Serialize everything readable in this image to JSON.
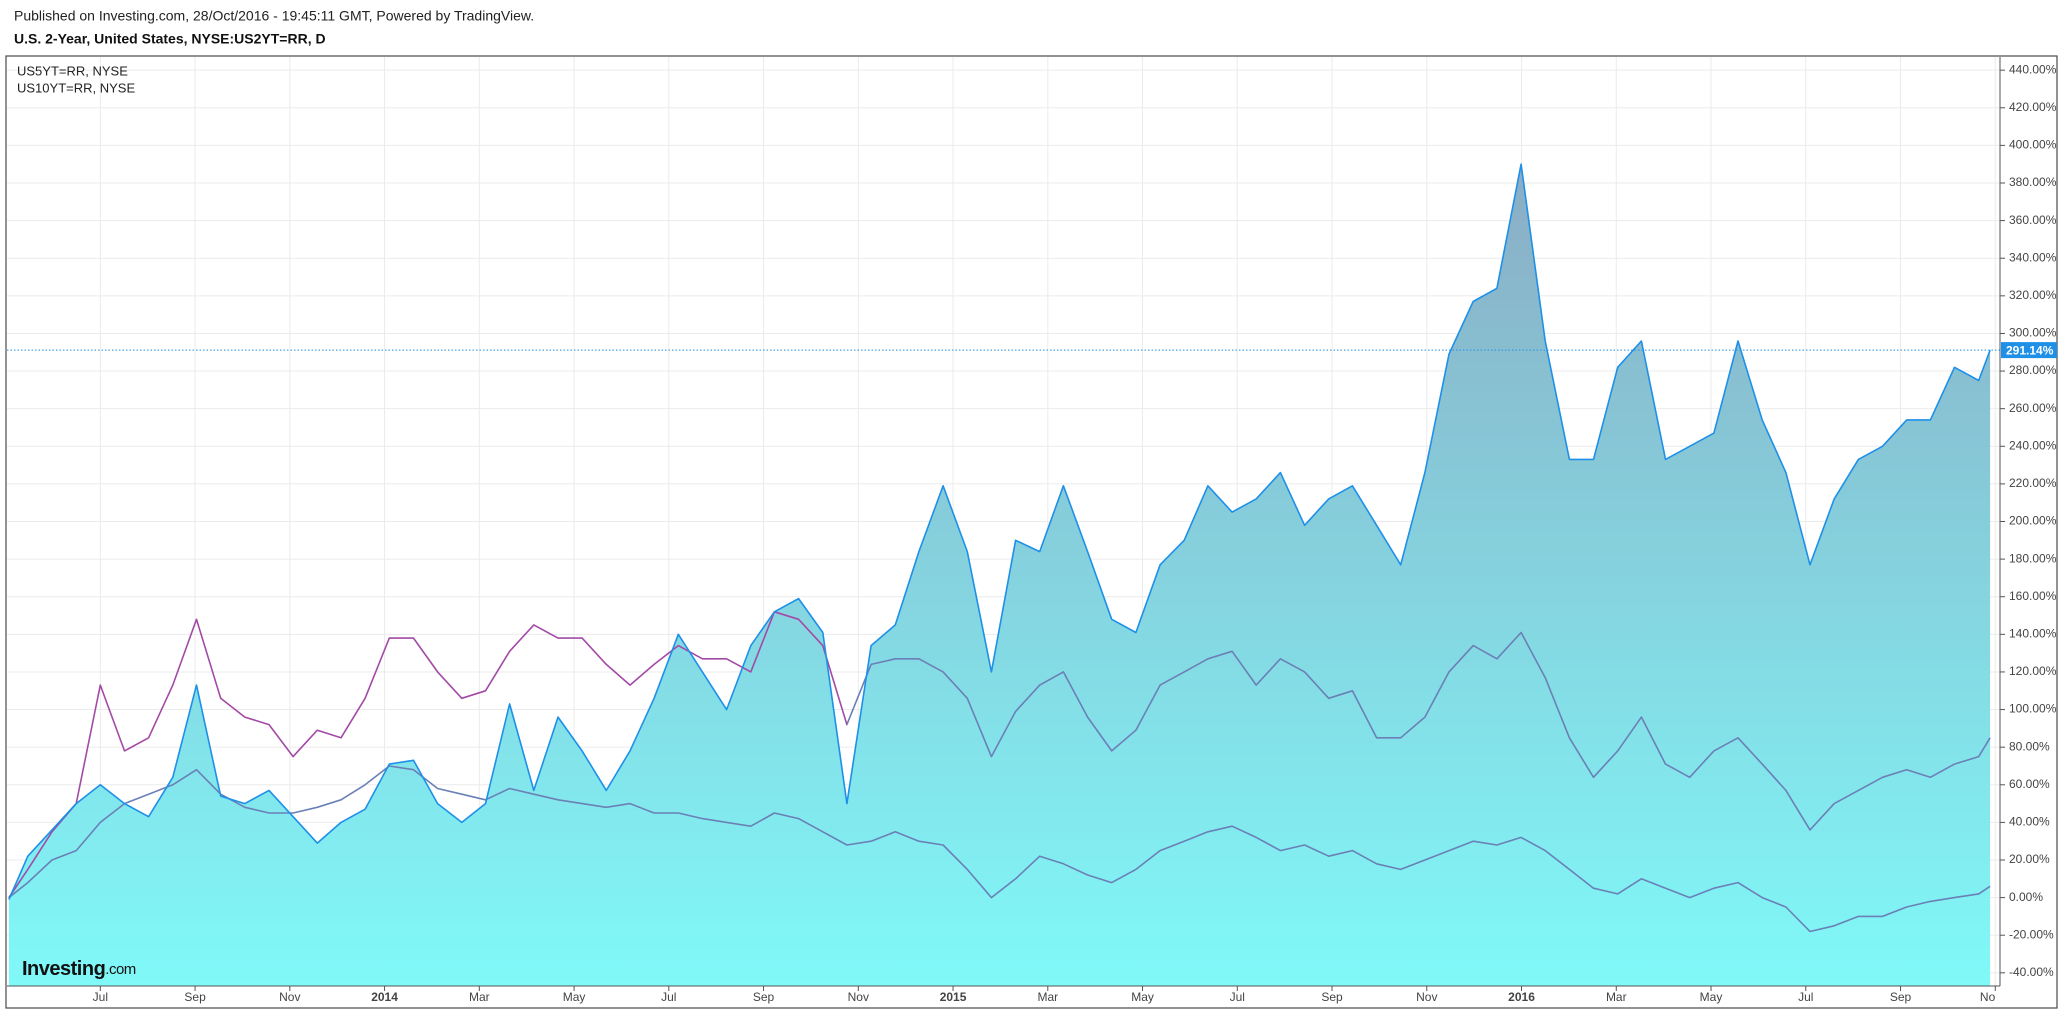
{
  "header": {
    "published": "Published on Investing.com, 28/Oct/2016 - 19:45:11 GMT, Powered by TradingView."
  },
  "logo": {
    "main": "Investing",
    "suffix": ".com"
  },
  "chart_data": {
    "type": "line",
    "x": [
      -1.93,
      -1.53,
      -1.02,
      -0.51,
      0,
      0.51,
      1.02,
      1.53,
      2.03,
      2.54,
      3.05,
      3.56,
      4.07,
      4.58,
      5.08,
      5.59,
      6.1,
      6.61,
      7.12,
      7.63,
      8.13,
      8.64,
      9.15,
      9.66,
      10.17,
      10.68,
      11.18,
      11.69,
      12.2,
      12.71,
      13.22,
      13.73,
      14.23,
      14.74,
      15.25,
      15.76,
      16.27,
      16.78,
      17.28,
      17.79,
      18.3,
      18.81,
      19.32,
      19.83,
      20.33,
      20.84,
      21.35,
      21.86,
      22.37,
      22.88,
      23.38,
      23.89,
      24.4,
      24.91,
      25.42,
      25.93,
      26.43,
      26.94,
      27.45,
      27.96,
      28.47,
      28.98,
      29.48,
      29.99,
      30.5,
      31.01,
      31.52,
      32.03,
      32.53,
      33.04,
      33.55,
      34.06,
      34.57,
      35.08,
      35.58,
      36.09,
      36.6,
      37.11,
      37.62,
      38.13,
      38.63,
      39.14,
      39.65,
      39.89
    ],
    "series": [
      {
        "name": "U.S. 2-Year, United States, NYSE:US2YT=RR, D",
        "color": "#1e90e8",
        "area": true,
        "fill_gradient": [
          "#8ca2bd",
          "#80f9f9"
        ],
        "values": [
          -1,
          22,
          36,
          50,
          60,
          50,
          43,
          64,
          113,
          54,
          50,
          57,
          43,
          29,
          40,
          47,
          71,
          73,
          50,
          40,
          50,
          103,
          57,
          96,
          78,
          57,
          78,
          106,
          140,
          120,
          100,
          134,
          152,
          159,
          141,
          50,
          134,
          145,
          184,
          219,
          184,
          120,
          190,
          184,
          219,
          184,
          148,
          141,
          177,
          190,
          219,
          205,
          212,
          226,
          198,
          212,
          219,
          198,
          177,
          226,
          289,
          317,
          324,
          390,
          296,
          233,
          233,
          282,
          296,
          233,
          240,
          247,
          296,
          254,
          226,
          177,
          212,
          233,
          240,
          254,
          254,
          282,
          275,
          291.14
        ]
      },
      {
        "name": "US5YT=RR, NYSE",
        "color": "#6a80b6",
        "early_color": "#a24aa6",
        "early_color_until_x": 15.76,
        "values": [
          0,
          15,
          35,
          50,
          113,
          78,
          85,
          113,
          148,
          106,
          96,
          92,
          75,
          89,
          85,
          106,
          138,
          138,
          120,
          106,
          110,
          131,
          145,
          138,
          138,
          124,
          113,
          124,
          134,
          127,
          127,
          120,
          152,
          148,
          134,
          92,
          124,
          127,
          127,
          120,
          106,
          75,
          99,
          113,
          120,
          96,
          78,
          89,
          113,
          120,
          127,
          131,
          113,
          127,
          120,
          106,
          110,
          85,
          85,
          96,
          120,
          134,
          127,
          141,
          117,
          85,
          64,
          78,
          96,
          71,
          64,
          78,
          85,
          71,
          57,
          36,
          50,
          57,
          64,
          68,
          64,
          71,
          75,
          85
        ]
      },
      {
        "name": "US10YT=RR, NYSE",
        "color": "#6a80b6",
        "values": [
          0,
          8,
          20,
          25,
          40,
          50,
          55,
          60,
          68,
          55,
          48,
          45,
          45,
          48,
          52,
          60,
          70,
          68,
          58,
          55,
          52,
          58,
          55,
          52,
          50,
          48,
          50,
          45,
          45,
          42,
          40,
          38,
          45,
          42,
          35,
          28,
          30,
          35,
          30,
          28,
          15,
          0,
          10,
          22,
          18,
          12,
          8,
          15,
          25,
          30,
          35,
          38,
          32,
          25,
          28,
          22,
          25,
          18,
          15,
          20,
          25,
          30,
          28,
          32,
          25,
          15,
          5,
          2,
          10,
          5,
          0,
          5,
          8,
          0,
          -5,
          -18,
          -15,
          -10,
          -10,
          -5,
          -2,
          0,
          2,
          6
        ]
      }
    ],
    "last_value": {
      "value": 291.14,
      "label": "291.14%",
      "color": "#1e90e8"
    },
    "xlim": [
      -1.97,
      40.1
    ],
    "xticks": [
      {
        "value": 0,
        "label": "Jul"
      },
      {
        "value": 2,
        "label": "Sep"
      },
      {
        "value": 4,
        "label": "Nov"
      },
      {
        "value": 6,
        "label": "2014"
      },
      {
        "value": 8,
        "label": "Mar"
      },
      {
        "value": 10,
        "label": "May"
      },
      {
        "value": 12,
        "label": "Jul"
      },
      {
        "value": 14,
        "label": "Sep"
      },
      {
        "value": 16,
        "label": "Nov"
      },
      {
        "value": 18,
        "label": "2015"
      },
      {
        "value": 20,
        "label": "Mar"
      },
      {
        "value": 22,
        "label": "May"
      },
      {
        "value": 24,
        "label": "Jul"
      },
      {
        "value": 26,
        "label": "Sep"
      },
      {
        "value": 28,
        "label": "Nov"
      },
      {
        "value": 30,
        "label": "2016"
      },
      {
        "value": 32,
        "label": "Mar"
      },
      {
        "value": 34,
        "label": "May"
      },
      {
        "value": 36,
        "label": "Jul"
      },
      {
        "value": 38,
        "label": "Sep"
      },
      {
        "value": 40,
        "label": "No"
      }
    ],
    "ylim": [
      -47,
      447
    ],
    "yticks": [
      {
        "value": -40,
        "label": "-40.00%"
      },
      {
        "value": -20,
        "label": "-20.00%"
      },
      {
        "value": 0,
        "label": "0.00%"
      },
      {
        "value": 20,
        "label": "20.00%"
      },
      {
        "value": 40,
        "label": "40.00%"
      },
      {
        "value": 60,
        "label": "60.00%"
      },
      {
        "value": 80,
        "label": "80.00%"
      },
      {
        "value": 100,
        "label": "100.00%"
      },
      {
        "value": 120,
        "label": "120.00%"
      },
      {
        "value": 140,
        "label": "140.00%"
      },
      {
        "value": 160,
        "label": "160.00%"
      },
      {
        "value": 180,
        "label": "180.00%"
      },
      {
        "value": 200,
        "label": "200.00%"
      },
      {
        "value": 220,
        "label": "220.00%"
      },
      {
        "value": 240,
        "label": "240.00%"
      },
      {
        "value": 260,
        "label": "260.00%"
      },
      {
        "value": 280,
        "label": "280.00%"
      },
      {
        "value": 300,
        "label": "300.00%"
      },
      {
        "value": 320,
        "label": "320.00%"
      },
      {
        "value": 340,
        "label": "340.00%"
      },
      {
        "value": 360,
        "label": "360.00%"
      },
      {
        "value": 380,
        "label": "380.00%"
      },
      {
        "value": 400,
        "label": "400.00%"
      },
      {
        "value": 420,
        "label": "420.00%"
      },
      {
        "value": 440,
        "label": "440.00%"
      }
    ],
    "grid": true
  }
}
